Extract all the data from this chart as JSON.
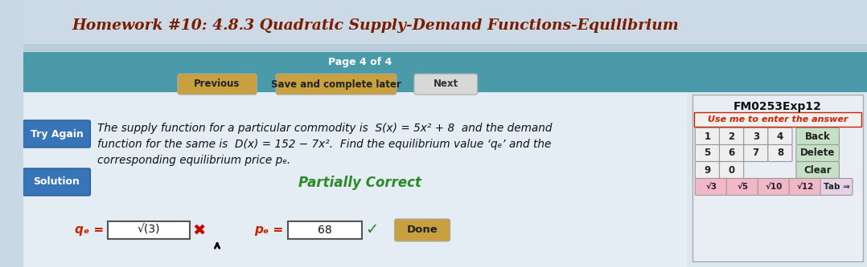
{
  "title": "Homework #10: 4.8.3 Quadratic Supply-Demand Functions-Equilibrium",
  "title_color": "#7B1C00",
  "page_label": "Page 4 of 4",
  "bg_light_blue": "#c8d8e4",
  "bg_teal": "#4a9aaa",
  "bg_main": "#dce6ee",
  "bg_content": "#e2eaf0",
  "btn_gold_color": "#c8a040",
  "btn_next_color": "#d8d8d8",
  "try_again_label": "Try Again",
  "solution_label": "Solution",
  "sidebar_label": "FM0253Exp12",
  "use_me_label": "Use me to enter the answer",
  "problem_text_line1": "The supply function for a particular commodity is  S(x) = 5x² + 8  and the demand",
  "problem_text_line2": "function for the same is  D(x) = 152 − 7x².  Find the equilibrium value ‘qₑ’ and the",
  "problem_text_line3": "corresponding equilibrium price pₑ.",
  "partially_correct": "Partially Correct",
  "qe_label": "qₑ =",
  "qe_value": "√(3)",
  "pe_label": "pₑ = $",
  "pe_value": "68",
  "done_label": "Done",
  "back_label": "Back",
  "delete_label": "Delete",
  "clear_label": "Clear",
  "keypad_funcs": [
    "√3",
    "√5",
    "√10",
    "√12",
    "Tab ⇒"
  ]
}
